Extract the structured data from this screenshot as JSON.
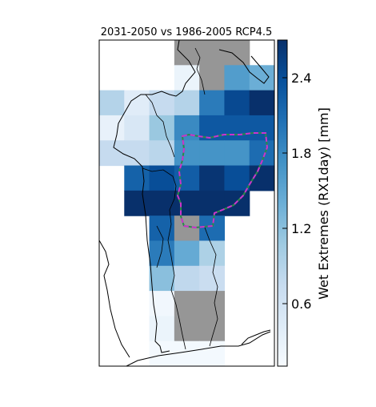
{
  "chart_data": {
    "type": "heatmap",
    "title": "2031-2050 vs 1986-2005 RCP4.5",
    "colorbar_label": "Wet Extremes (RX1day) [mm]",
    "colorbar_ticks": [
      "0.6",
      "1.2",
      "1.8",
      "2.4"
    ],
    "colorbar_tick_values": [
      0.6,
      1.2,
      1.8,
      2.4
    ],
    "colorbar_range": [
      0.0,
      2.6
    ],
    "colormap": "Blues",
    "no_data_color": "#969696",
    "region_outline_colors": [
      "#cc33cc",
      "#2a8a4a"
    ],
    "grid_columns": 7,
    "grid_rows": 13,
    "cells": [
      {
        "row": 0,
        "col": 3,
        "value": null
      },
      {
        "row": 0,
        "col": 4,
        "value": null
      },
      {
        "row": 0,
        "col": 5,
        "value": null
      },
      {
        "row": 1,
        "col": 3,
        "value": 0.15
      },
      {
        "row": 1,
        "col": 4,
        "value": null
      },
      {
        "row": 1,
        "col": 5,
        "value": 1.5
      },
      {
        "row": 1,
        "col": 6,
        "value": 1.3
      },
      {
        "row": 2,
        "col": 0,
        "value": 0.8
      },
      {
        "row": 2,
        "col": 1,
        "value": 0.3
      },
      {
        "row": 2,
        "col": 2,
        "value": 0.65
      },
      {
        "row": 2,
        "col": 3,
        "value": 0.8
      },
      {
        "row": 2,
        "col": 4,
        "value": 1.85
      },
      {
        "row": 2,
        "col": 5,
        "value": 2.35
      },
      {
        "row": 2,
        "col": 6,
        "value": 2.6
      },
      {
        "row": 3,
        "col": 0,
        "value": 0.2
      },
      {
        "row": 3,
        "col": 1,
        "value": 0.4
      },
      {
        "row": 3,
        "col": 2,
        "value": 1.0
      },
      {
        "row": 3,
        "col": 3,
        "value": 1.7
      },
      {
        "row": 3,
        "col": 4,
        "value": 2.2
      },
      {
        "row": 3,
        "col": 5,
        "value": 2.2
      },
      {
        "row": 3,
        "col": 6,
        "value": 2.2
      },
      {
        "row": 4,
        "col": 0,
        "value": 0.65
      },
      {
        "row": 4,
        "col": 1,
        "value": 0.65
      },
      {
        "row": 4,
        "col": 2,
        "value": 0.75
      },
      {
        "row": 4,
        "col": 3,
        "value": 1.6
      },
      {
        "row": 4,
        "col": 4,
        "value": 1.6
      },
      {
        "row": 4,
        "col": 5,
        "value": 1.6
      },
      {
        "row": 4,
        "col": 6,
        "value": 2.0
      },
      {
        "row": 5,
        "col": 1,
        "value": 2.1
      },
      {
        "row": 5,
        "col": 2,
        "value": 2.3
      },
      {
        "row": 5,
        "col": 3,
        "value": 2.15
      },
      {
        "row": 5,
        "col": 4,
        "value": 2.55
      },
      {
        "row": 5,
        "col": 5,
        "value": 2.3
      },
      {
        "row": 5,
        "col": 6,
        "value": 2.6
      },
      {
        "row": 6,
        "col": 1,
        "value": 2.6
      },
      {
        "row": 6,
        "col": 2,
        "value": 2.6
      },
      {
        "row": 6,
        "col": 3,
        "value": 2.6
      },
      {
        "row": 6,
        "col": 4,
        "value": 2.6
      },
      {
        "row": 6,
        "col": 5,
        "value": 2.6
      },
      {
        "row": 7,
        "col": 2,
        "value": 2.1
      },
      {
        "row": 7,
        "col": 3,
        "value": null
      },
      {
        "row": 7,
        "col": 4,
        "value": 2.0
      },
      {
        "row": 8,
        "col": 2,
        "value": 1.85
      },
      {
        "row": 8,
        "col": 3,
        "value": 1.35
      },
      {
        "row": 8,
        "col": 4,
        "value": 0.85
      },
      {
        "row": 9,
        "col": 2,
        "value": 1.1
      },
      {
        "row": 9,
        "col": 3,
        "value": 0.7
      },
      {
        "row": 9,
        "col": 4,
        "value": 0.6
      },
      {
        "row": 10,
        "col": 2,
        "value": 0.08
      },
      {
        "row": 10,
        "col": 3,
        "value": null
      },
      {
        "row": 10,
        "col": 4,
        "value": null
      },
      {
        "row": 11,
        "col": 2,
        "value": 0.15
      },
      {
        "row": 11,
        "col": 3,
        "value": null
      },
      {
        "row": 11,
        "col": 4,
        "value": null
      },
      {
        "row": 12,
        "col": 2,
        "value": 0.05
      },
      {
        "row": 12,
        "col": 3,
        "value": 0.05
      },
      {
        "row": 12,
        "col": 4,
        "value": 0.05
      }
    ]
  }
}
